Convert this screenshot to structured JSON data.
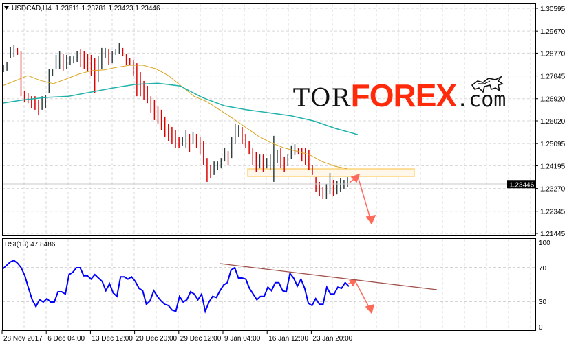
{
  "header": {
    "symbol_info": "USDCAD,H4  1.23611 1.23781 1.23423 1.23446",
    "menu_icon": "triangle-down-icon"
  },
  "logo": {
    "tor": "TOR",
    "forex": "FOREX",
    "com": ".com"
  },
  "colors": {
    "up_bar": "#2f3f3f",
    "down_bar": "#e00000",
    "ma_fast": "#daa520",
    "ma_slow": "#20b2aa",
    "rsi": "#0000ff",
    "zone": "#ffd27a",
    "arrow": "#ff6a5a",
    "trendline": "#a0524a"
  },
  "chart_data": [
    {
      "type": "bar",
      "title": "USDCAD,H4",
      "ohlc_header": [
        "1.23611",
        "1.23781",
        "1.23423",
        "1.23446"
      ],
      "ylim": [
        1.21445,
        1.30595
      ],
      "y_ticks": [
        "1.30595",
        "1.29670",
        "1.28770",
        "1.27845",
        "1.26920",
        "1.26020",
        "1.25095",
        "1.24195",
        "1.23270",
        "1.22345",
        "1.21445"
      ],
      "current_price": "1.23446",
      "grid": true,
      "x_ticks": [
        "28 Nov 2017",
        "6 Dec 04:00",
        "13 Dec 12:00",
        "20 Dec 20:00",
        "29 Dec 12:00",
        "9 Jan 04:00",
        "16 Jan 12:00",
        "23 Jan 20:00"
      ],
      "high": [
        1.2828,
        1.2842,
        1.2903,
        1.2909,
        1.2898,
        1.2884,
        1.2725,
        1.2716,
        1.2702,
        1.2702,
        1.2688,
        1.2702,
        1.2708,
        1.2814,
        1.2814,
        1.287,
        1.2884,
        1.2875,
        1.287,
        1.2864,
        1.2864,
        1.2884,
        1.2892,
        1.2884,
        1.2875,
        1.287,
        1.2856,
        1.2864,
        1.2898,
        1.2898,
        1.2892,
        1.2884,
        1.2892,
        1.292,
        1.2898,
        1.2875,
        1.2856,
        1.2848,
        1.2836,
        1.28,
        1.2764,
        1.2744,
        1.2702,
        1.2688,
        1.266,
        1.2647,
        1.2619,
        1.2591,
        1.2577,
        1.2563,
        1.2535,
        1.2535,
        1.2563,
        1.2549,
        1.2555,
        1.2549,
        1.2535,
        1.2521,
        1.2451,
        1.2423,
        1.2437,
        1.2437,
        1.2451,
        1.2493,
        1.2479,
        1.2535,
        1.2591,
        1.2585,
        1.2577,
        1.2549,
        1.2521,
        1.2493,
        1.2474,
        1.2465,
        1.2465,
        1.2451,
        1.2465,
        1.2541,
        1.2485,
        1.2493,
        1.2457,
        1.2465,
        1.2502,
        1.2507,
        1.2493,
        1.2493,
        1.2493,
        1.2485,
        1.2423,
        1.2373,
        1.2354,
        1.2334,
        1.2345,
        1.239,
        1.2362,
        1.2359,
        1.2368,
        1.2362,
        1.2373
      ],
      "low": [
        1.28,
        1.2806,
        1.2856,
        1.2861,
        1.287,
        1.2702,
        1.268,
        1.2674,
        1.2655,
        1.2647,
        1.2624,
        1.2647,
        1.2652,
        1.2716,
        1.2786,
        1.2814,
        1.2814,
        1.2806,
        1.2814,
        1.2828,
        1.2836,
        1.2842,
        1.282,
        1.2814,
        1.28,
        1.2786,
        1.2716,
        1.2758,
        1.2814,
        1.2856,
        1.2828,
        1.2836,
        1.287,
        1.2875,
        1.2864,
        1.2828,
        1.2828,
        1.2786,
        1.2702,
        1.2702,
        1.2688,
        1.2674,
        1.2633,
        1.2605,
        1.2591,
        1.2563,
        1.2535,
        1.2521,
        1.2507,
        1.2493,
        1.2493,
        1.2502,
        1.2493,
        1.2474,
        1.2507,
        1.2493,
        1.2465,
        1.2423,
        1.2354,
        1.2368,
        1.2382,
        1.2401,
        1.2409,
        1.2437,
        1.2423,
        1.2451,
        1.2507,
        1.2535,
        1.2507,
        1.2493,
        1.2465,
        1.2423,
        1.2395,
        1.2409,
        1.2395,
        1.2409,
        1.2401,
        1.2354,
        1.2429,
        1.2409,
        1.2395,
        1.2418,
        1.2446,
        1.2463,
        1.2465,
        1.2437,
        1.2423,
        1.2401,
        1.2382,
        1.2312,
        1.2298,
        1.2284,
        1.2284,
        1.2306,
        1.2298,
        1.2303,
        1.2312,
        1.2326,
        1.2334
      ],
      "ma_fast": [
        1.2744,
        1.2764,
        1.2786,
        1.2766,
        1.2753,
        1.2772,
        1.2792,
        1.2806,
        1.2809,
        1.282,
        1.2828,
        1.2828,
        1.2814,
        1.2786,
        1.2744,
        1.2702,
        1.268,
        1.2647,
        1.2613,
        1.2577,
        1.2541,
        1.2513,
        1.2493,
        1.2479,
        1.2465,
        1.2437,
        1.2418,
        1.2407
      ],
      "ma_slow": [
        1.2674,
        1.2688,
        1.2697,
        1.2702,
        1.2719,
        1.2736,
        1.275,
        1.2755,
        1.2744,
        1.2697,
        1.2663,
        1.2647,
        1.2635,
        1.2622,
        1.2602,
        1.2571,
        1.2546
      ],
      "resistance_zone": [
        1.2376,
        1.2407
      ]
    },
    {
      "type": "line",
      "title": "RSI(13) 47.8486",
      "ylim": [
        0,
        100
      ],
      "y_ticks": [
        "100",
        "70",
        "30",
        "0"
      ],
      "levels": [
        70,
        30
      ],
      "values": [
        68.5,
        72.6,
        76.7,
        78.6,
        75.4,
        69.9,
        60.4,
        45.5,
        32,
        23.9,
        32,
        29.3,
        33.3,
        29.3,
        29.3,
        41.5,
        41.5,
        38.8,
        61.8,
        64.5,
        69.9,
        69.9,
        60.4,
        60.4,
        56.4,
        61.8,
        57.7,
        53.7,
        42.8,
        51,
        40.1,
        36,
        59.1,
        59.1,
        56.4,
        59.1,
        53.7,
        45.5,
        42.8,
        26.6,
        30.6,
        42.8,
        36,
        30.6,
        26.6,
        25.2,
        19.8,
        18.4,
        36,
        29.3,
        32,
        41.5,
        38.8,
        32,
        38.8,
        18.4,
        29.3,
        36,
        34.7,
        42.8,
        49.6,
        52.3,
        67.2,
        69.9,
        57.7,
        57.7,
        56.4,
        45.5,
        38.8,
        32,
        36,
        36,
        46.9,
        42.8,
        52.3,
        52.3,
        42.8,
        41.5,
        63.2,
        57.7,
        48.2,
        56.4,
        45.5,
        27.9,
        25.2,
        33.3,
        26.6,
        26.6,
        46.9,
        38.8,
        38.8,
        46.9,
        45.5,
        52.3,
        47.8
      ]
    }
  ]
}
